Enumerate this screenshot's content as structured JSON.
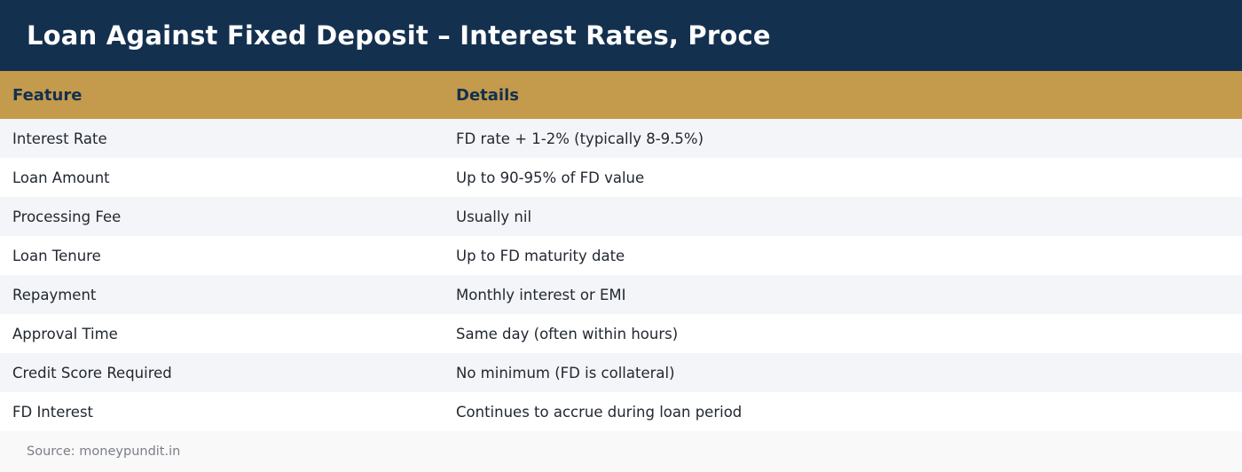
{
  "title": "Loan Against Fixed Deposit – Interest Rates, Proce",
  "table": {
    "headers": [
      "Feature",
      "Details"
    ],
    "rows": [
      {
        "feature": "Interest Rate",
        "details": "FD rate + 1-2% (typically 8-9.5%)"
      },
      {
        "feature": "Loan Amount",
        "details": "Up to 90-95% of FD value"
      },
      {
        "feature": "Processing Fee",
        "details": "Usually nil"
      },
      {
        "feature": "Loan Tenure",
        "details": "Up to FD maturity date"
      },
      {
        "feature": "Repayment",
        "details": "Monthly interest or EMI"
      },
      {
        "feature": "Approval Time",
        "details": "Same day (often within hours)"
      },
      {
        "feature": "Credit Score Required",
        "details": "No minimum (FD is collateral)"
      },
      {
        "feature": "FD Interest",
        "details": "Continues to accrue during loan period"
      }
    ]
  },
  "footer": {
    "source": "Source: moneypundit.in"
  },
  "colors": {
    "header_bg": "#13304f",
    "table_header_bg": "#c49a4c",
    "row_alt_bg": "#f4f5f8"
  }
}
